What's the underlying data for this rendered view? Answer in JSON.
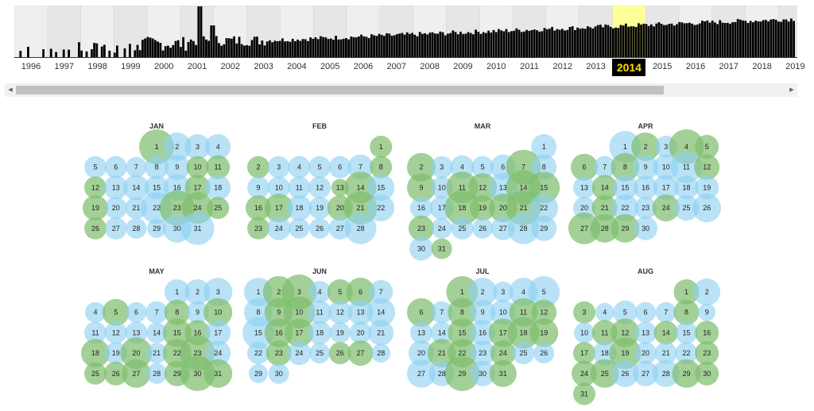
{
  "timeline": {
    "selected_year": "2014",
    "years": [
      "1996",
      "1997",
      "1998",
      "1999",
      "2000",
      "2001",
      "2002",
      "2003",
      "2004",
      "2005",
      "2006",
      "2007",
      "2008",
      "2009",
      "2010",
      "2011",
      "2012",
      "2013",
      "2014",
      "2015",
      "2016",
      "2017",
      "2018",
      "2019"
    ],
    "colors": {
      "bars": "#000000",
      "highlight": "#ffff99",
      "band_even": "#efefef",
      "band_odd": "#e6e6e6",
      "selected_label_bg": "#000000",
      "selected_label_text": "#ffdd00"
    }
  },
  "calendar": {
    "colors": {
      "blue": "#8ed0f0",
      "green": "#7fbe6e"
    },
    "months": [
      {
        "name": "JAN",
        "first_weekday": 3,
        "days": 31,
        "circles": {
          "1": [
            "g",
            22
          ],
          "2": [
            "b",
            18
          ],
          "3": [
            "b",
            16
          ],
          "4": [
            "b",
            16
          ],
          "5": [
            "b",
            14
          ],
          "6": [
            "b",
            14
          ],
          "7": [
            "b",
            13
          ],
          "8": [
            "b",
            15
          ],
          "9": [
            "b",
            16
          ],
          "10": [
            "g",
            14
          ],
          "11": [
            "g",
            15
          ],
          "12": [
            "g",
            14
          ],
          "13": [
            "b",
            15
          ],
          "14": [
            "b",
            16
          ],
          "15": [
            "b",
            15
          ],
          "16": [
            "b",
            17
          ],
          "17": [
            "g",
            16
          ],
          "18": [
            "b",
            16
          ],
          "19": [
            "g",
            16
          ],
          "20": [
            "b",
            14
          ],
          "21": [
            "b",
            14
          ],
          "22": [
            "b",
            20
          ],
          "23": [
            "g",
            22
          ],
          "24": [
            "g",
            20
          ],
          "25": [
            "g",
            14
          ],
          "26": [
            "g",
            14
          ],
          "27": [
            "b",
            14
          ],
          "28": [
            "b",
            13
          ],
          "29": [
            "b",
            12
          ],
          "30": [
            "b",
            18
          ],
          "31": [
            "b",
            21
          ]
        }
      },
      {
        "name": "FEB",
        "first_weekday": 6,
        "days": 28,
        "circles": {
          "1": [
            "g",
            14
          ],
          "2": [
            "g",
            14
          ],
          "3": [
            "b",
            14
          ],
          "4": [
            "b",
            14
          ],
          "5": [
            "b",
            14
          ],
          "6": [
            "b",
            14
          ],
          "7": [
            "b",
            16
          ],
          "8": [
            "g",
            14
          ],
          "9": [
            "b",
            14
          ],
          "10": [
            "b",
            14
          ],
          "11": [
            "b",
            14
          ],
          "12": [
            "b",
            14
          ],
          "13": [
            "g",
            11
          ],
          "14": [
            "g",
            20
          ],
          "15": [
            "b",
            17
          ],
          "16": [
            "g",
            16
          ],
          "17": [
            "g",
            18
          ],
          "18": [
            "b",
            16
          ],
          "19": [
            "b",
            14
          ],
          "20": [
            "g",
            16
          ],
          "21": [
            "g",
            21
          ],
          "22": [
            "b",
            17
          ],
          "23": [
            "g",
            14
          ],
          "24": [
            "b",
            15
          ],
          "25": [
            "b",
            13
          ],
          "26": [
            "b",
            13
          ],
          "27": [
            "b",
            14
          ],
          "28": [
            "b",
            20
          ]
        }
      },
      {
        "name": "MAR",
        "first_weekday": 6,
        "days": 31,
        "circles": {
          "1": [
            "b",
            16
          ],
          "2": [
            "g",
            18
          ],
          "3": [
            "b",
            14
          ],
          "4": [
            "b",
            15
          ],
          "5": [
            "b",
            14
          ],
          "6": [
            "b",
            16
          ],
          "7": [
            "g",
            22
          ],
          "8": [
            "b",
            16
          ],
          "9": [
            "g",
            18
          ],
          "10": [
            "b",
            14
          ],
          "11": [
            "g",
            20
          ],
          "12": [
            "g",
            18
          ],
          "13": [
            "b",
            18
          ],
          "14": [
            "g",
            22
          ],
          "15": [
            "g",
            20
          ],
          "16": [
            "b",
            14
          ],
          "17": [
            "b",
            15
          ],
          "18": [
            "g",
            22
          ],
          "19": [
            "g",
            16
          ],
          "20": [
            "g",
            18
          ],
          "21": [
            "g",
            22
          ],
          "22": [
            "b",
            18
          ],
          "23": [
            "g",
            16
          ],
          "24": [
            "b",
            13
          ],
          "25": [
            "b",
            14
          ],
          "26": [
            "b",
            13
          ],
          "27": [
            "b",
            15
          ],
          "28": [
            "b",
            20
          ],
          "29": [
            "b",
            16
          ],
          "30": [
            "b",
            15
          ],
          "31": [
            "g",
            13
          ]
        }
      },
      {
        "name": "APR",
        "first_weekday": 2,
        "days": 30,
        "circles": {
          "1": [
            "b",
            20
          ],
          "2": [
            "g",
            18
          ],
          "3": [
            "b",
            14
          ],
          "4": [
            "g",
            22
          ],
          "5": [
            "g",
            15
          ],
          "6": [
            "g",
            17
          ],
          "7": [
            "b",
            14
          ],
          "8": [
            "g",
            18
          ],
          "9": [
            "b",
            16
          ],
          "10": [
            "b",
            16
          ],
          "11": [
            "b",
            20
          ],
          "12": [
            "g",
            16
          ],
          "13": [
            "b",
            14
          ],
          "14": [
            "g",
            16
          ],
          "15": [
            "b",
            16
          ],
          "16": [
            "b",
            15
          ],
          "17": [
            "b",
            16
          ],
          "18": [
            "b",
            15
          ],
          "19": [
            "b",
            15
          ],
          "20": [
            "b",
            14
          ],
          "21": [
            "g",
            16
          ],
          "22": [
            "b",
            17
          ],
          "23": [
            "b",
            14
          ],
          "24": [
            "g",
            17
          ],
          "25": [
            "b",
            16
          ],
          "26": [
            "b",
            18
          ],
          "27": [
            "g",
            20
          ],
          "28": [
            "g",
            18
          ],
          "29": [
            "g",
            18
          ],
          "30": [
            "b",
            15
          ]
        }
      },
      {
        "name": "MAY",
        "first_weekday": 4,
        "days": 31,
        "circles": {
          "1": [
            "b",
            16
          ],
          "2": [
            "b",
            16
          ],
          "3": [
            "b",
            18
          ],
          "4": [
            "b",
            13
          ],
          "5": [
            "g",
            17
          ],
          "6": [
            "b",
            13
          ],
          "7": [
            "b",
            14
          ],
          "8": [
            "g",
            16
          ],
          "9": [
            "b",
            14
          ],
          "10": [
            "g",
            18
          ],
          "11": [
            "b",
            14
          ],
          "12": [
            "b",
            14
          ],
          "13": [
            "b",
            14
          ],
          "14": [
            "b",
            13
          ],
          "15": [
            "g",
            18
          ],
          "16": [
            "g",
            16
          ],
          "17": [
            "b",
            16
          ],
          "18": [
            "g",
            18
          ],
          "19": [
            "b",
            14
          ],
          "20": [
            "g",
            20
          ],
          "21": [
            "b",
            13
          ],
          "22": [
            "g",
            18
          ],
          "23": [
            "g",
            22
          ],
          "24": [
            "b",
            16
          ],
          "25": [
            "g",
            14
          ],
          "26": [
            "g",
            15
          ],
          "27": [
            "g",
            18
          ],
          "28": [
            "b",
            13
          ],
          "29": [
            "g",
            16
          ],
          "30": [
            "g",
            22
          ],
          "31": [
            "g",
            18
          ]
        }
      },
      {
        "name": "JUN",
        "first_weekday": 0,
        "days": 30,
        "circles": {
          "1": [
            "b",
            18
          ],
          "2": [
            "g",
            20
          ],
          "3": [
            "g",
            22
          ],
          "4": [
            "b",
            14
          ],
          "5": [
            "g",
            16
          ],
          "6": [
            "g",
            18
          ],
          "7": [
            "b",
            15
          ],
          "8": [
            "b",
            18
          ],
          "9": [
            "g",
            18
          ],
          "10": [
            "g",
            20
          ],
          "11": [
            "b",
            15
          ],
          "12": [
            "b",
            15
          ],
          "13": [
            "b",
            16
          ],
          "14": [
            "b",
            18
          ],
          "15": [
            "b",
            20
          ],
          "16": [
            "g",
            18
          ],
          "17": [
            "g",
            18
          ],
          "18": [
            "b",
            15
          ],
          "19": [
            "b",
            13
          ],
          "20": [
            "b",
            14
          ],
          "21": [
            "b",
            16
          ],
          "22": [
            "b",
            14
          ],
          "23": [
            "g",
            16
          ],
          "24": [
            "b",
            15
          ],
          "25": [
            "b",
            13
          ],
          "26": [
            "g",
            14
          ],
          "27": [
            "g",
            16
          ],
          "28": [
            "b",
            12
          ],
          "29": [
            "b",
            12
          ],
          "30": [
            "b",
            13
          ]
        }
      },
      {
        "name": "JUL",
        "first_weekday": 2,
        "days": 31,
        "circles": {
          "1": [
            "g",
            20
          ],
          "2": [
            "b",
            18
          ],
          "3": [
            "b",
            13
          ],
          "4": [
            "b",
            18
          ],
          "5": [
            "b",
            20
          ],
          "6": [
            "g",
            18
          ],
          "7": [
            "b",
            14
          ],
          "8": [
            "g",
            18
          ],
          "9": [
            "b",
            16
          ],
          "10": [
            "b",
            16
          ],
          "11": [
            "g",
            18
          ],
          "12": [
            "g",
            16
          ],
          "13": [
            "b",
            14
          ],
          "14": [
            "b",
            14
          ],
          "15": [
            "g",
            18
          ],
          "16": [
            "b",
            16
          ],
          "17": [
            "g",
            18
          ],
          "18": [
            "g",
            20
          ],
          "19": [
            "g",
            18
          ],
          "20": [
            "b",
            16
          ],
          "21": [
            "g",
            18
          ],
          "22": [
            "g",
            18
          ],
          "23": [
            "b",
            16
          ],
          "24": [
            "g",
            16
          ],
          "25": [
            "b",
            14
          ],
          "26": [
            "b",
            13
          ],
          "27": [
            "b",
            18
          ],
          "28": [
            "b",
            16
          ],
          "29": [
            "g",
            22
          ],
          "30": [
            "b",
            16
          ],
          "31": [
            "g",
            17
          ]
        }
      },
      {
        "name": "AUG",
        "first_weekday": 5,
        "days": 31,
        "circles": {
          "1": [
            "g",
            16
          ],
          "2": [
            "b",
            17
          ],
          "3": [
            "g",
            14
          ],
          "4": [
            "b",
            12
          ],
          "5": [
            "b",
            15
          ],
          "6": [
            "b",
            13
          ],
          "7": [
            "b",
            13
          ],
          "8": [
            "g",
            16
          ],
          "9": [
            "b",
            11
          ],
          "10": [
            "b",
            13
          ],
          "11": [
            "g",
            16
          ],
          "12": [
            "g",
            18
          ],
          "13": [
            "b",
            14
          ],
          "14": [
            "g",
            15
          ],
          "15": [
            "b",
            14
          ],
          "16": [
            "g",
            15
          ],
          "17": [
            "g",
            14
          ],
          "18": [
            "b",
            15
          ],
          "19": [
            "g",
            20
          ],
          "20": [
            "b",
            14
          ],
          "21": [
            "b",
            14
          ],
          "22": [
            "b",
            14
          ],
          "23": [
            "g",
            15
          ],
          "24": [
            "g",
            16
          ],
          "25": [
            "g",
            18
          ],
          "26": [
            "b",
            17
          ],
          "27": [
            "b",
            16
          ],
          "28": [
            "b",
            17
          ],
          "29": [
            "g",
            18
          ],
          "30": [
            "g",
            15
          ],
          "31": [
            "g",
            14
          ]
        }
      }
    ]
  }
}
